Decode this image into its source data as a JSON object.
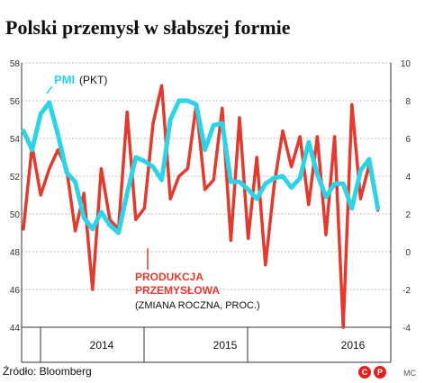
{
  "title": "Polski przemysł w słabszej formie",
  "footer": {
    "source": "Źródło: Bloomberg",
    "credit": "MC",
    "logo_letters": [
      "C",
      "P"
    ]
  },
  "chart_data": {
    "type": "line",
    "x_categories": [
      "2014",
      "2015",
      "2016"
    ],
    "x_unit": "month",
    "left_axis": {
      "ticks": [
        "58",
        "56",
        "54",
        "52",
        "50",
        "48",
        "46",
        "44"
      ],
      "ylim": [
        44,
        58
      ]
    },
    "right_axis": {
      "ticks": [
        "10",
        "8",
        "6",
        "4",
        "2",
        "0",
        "-2",
        "-4"
      ],
      "ylim": [
        -4,
        10
      ]
    },
    "grid": true,
    "series": [
      {
        "name": "PMI",
        "unit_label": "(PKT)",
        "axis": "left",
        "color": "#2fd3e6",
        "x": [
          0,
          1,
          2,
          3,
          4,
          5,
          6,
          7,
          8,
          9,
          10,
          11,
          12,
          13,
          14,
          15,
          16,
          17,
          18,
          19,
          20,
          21,
          22,
          23,
          24,
          25,
          26,
          27,
          28,
          29,
          30,
          31,
          32,
          33,
          34,
          35,
          36,
          37,
          38,
          39,
          40,
          41
        ],
        "values": [
          54.4,
          53.4,
          55.3,
          55.9,
          54.2,
          52.2,
          51.7,
          49.8,
          49.2,
          50.1,
          49.4,
          49.0,
          51.1,
          53.0,
          52.8,
          52.5,
          51.8,
          55.0,
          56.0,
          56.0,
          55.8,
          53.4,
          54.7,
          54.8,
          51.7,
          51.7,
          51.3,
          50.8,
          51.6,
          51.9,
          52.0,
          51.4,
          51.9,
          53.8,
          52.1,
          50.9,
          51.6,
          51.6,
          50.3,
          52.3,
          52.9,
          50.3
        ],
        "print_x": 0.4
      },
      {
        "name": "PRODUKCJA PRZEMYSŁOWA",
        "unit_label": "(ZMIANA ROCZNA, PROC.)",
        "axis": "right",
        "color": "#e23b2d",
        "x": [
          0,
          1,
          2,
          3,
          4,
          5,
          6,
          7,
          8,
          9,
          10,
          11,
          12,
          13,
          14,
          15,
          16,
          17,
          18,
          19,
          20,
          21,
          22,
          23,
          24,
          25,
          26,
          27,
          28,
          29,
          30,
          31,
          32,
          33,
          34,
          35,
          36,
          37,
          38,
          39,
          40,
          41
        ],
        "values": [
          1.2,
          5.6,
          3.0,
          4.4,
          5.4,
          4.4,
          1.1,
          3.1,
          -2.0,
          4.4,
          1.7,
          1.2,
          7.4,
          1.7,
          2.3,
          6.8,
          8.8,
          2.8,
          4.0,
          4.4,
          7.8,
          3.3,
          3.8,
          7.6,
          0.6,
          7.1,
          0.7,
          5.0,
          -0.7,
          3.5,
          6.4,
          4.5,
          6.1,
          2.5,
          6.1,
          0.9,
          6.1,
          -4.0,
          7.8,
          2.8,
          4.6,
          2.2
        ]
      }
    ]
  }
}
